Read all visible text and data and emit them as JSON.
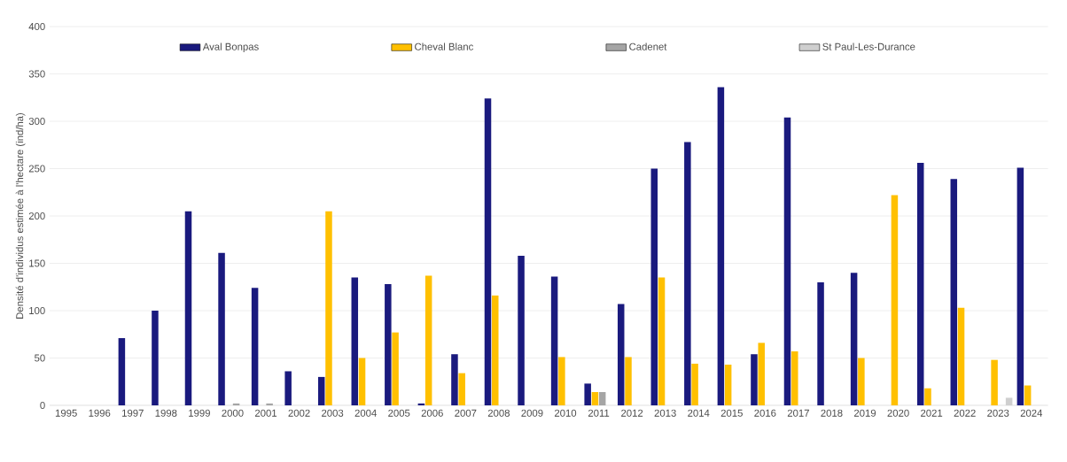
{
  "chart_data": {
    "type": "bar",
    "ylabel": "Densité d'individus estimée à l'hectare (ind/ha)",
    "categories": [
      "1995",
      "1996",
      "1997",
      "1998",
      "1999",
      "2000",
      "2001",
      "2002",
      "2003",
      "2004",
      "2005",
      "2006",
      "2007",
      "2008",
      "2009",
      "2010",
      "2011",
      "2012",
      "2013",
      "2014",
      "2015",
      "2016",
      "2017",
      "2018",
      "2019",
      "2020",
      "2021",
      "2022",
      "2023",
      "2024"
    ],
    "series": [
      {
        "name": "Aval Bonpas",
        "color": "#1a1a7e",
        "values": [
          null,
          null,
          71,
          100,
          205,
          161,
          124,
          36,
          30,
          135,
          128,
          2,
          54,
          324,
          158,
          136,
          23,
          107,
          250,
          278,
          336,
          54,
          304,
          130,
          140,
          null,
          256,
          239,
          null,
          251
        ]
      },
      {
        "name": "Cheval Blanc",
        "color": "#ffc000",
        "values": [
          null,
          null,
          null,
          null,
          null,
          null,
          null,
          null,
          205,
          50,
          77,
          137,
          34,
          116,
          null,
          51,
          14,
          51,
          135,
          44,
          43,
          66,
          57,
          null,
          50,
          222,
          18,
          103,
          48,
          21
        ]
      },
      {
        "name": "Cadenet",
        "color": "#a5a5a5",
        "values": [
          null,
          null,
          null,
          null,
          null,
          2,
          2,
          null,
          null,
          null,
          null,
          null,
          null,
          null,
          null,
          null,
          14,
          null,
          null,
          null,
          null,
          null,
          null,
          null,
          null,
          null,
          null,
          null,
          null,
          null
        ]
      },
      {
        "name": "St Paul-Les-Durance",
        "color": "#cfcfcf",
        "values": [
          null,
          null,
          null,
          null,
          null,
          null,
          null,
          null,
          null,
          null,
          null,
          null,
          null,
          null,
          null,
          null,
          null,
          null,
          null,
          null,
          null,
          null,
          null,
          null,
          null,
          null,
          null,
          null,
          8,
          null
        ]
      }
    ],
    "ylim": [
      0,
      400
    ],
    "yticks": [
      0,
      50,
      100,
      150,
      200,
      250,
      300,
      350,
      400
    ],
    "grid": "y",
    "legend": "top"
  }
}
